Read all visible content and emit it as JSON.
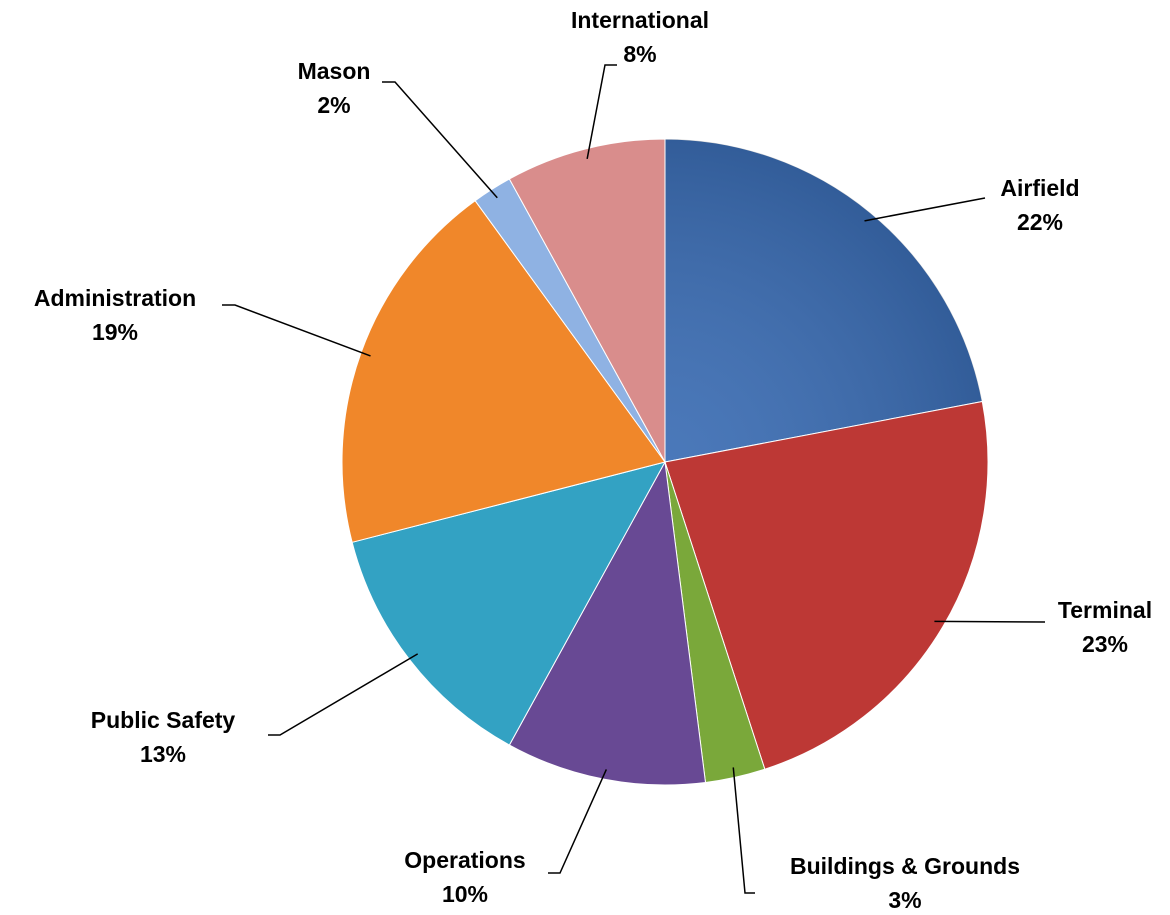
{
  "chart_data": {
    "type": "pie",
    "categories": [
      "Airfield",
      "Terminal",
      "Buildings & Grounds",
      "Operations",
      "Public Safety",
      "Administration",
      "Mason",
      "International"
    ],
    "values": [
      22,
      23,
      3,
      10,
      13,
      19,
      2,
      8
    ],
    "value_labels": [
      "22%",
      "23%",
      "3%",
      "10%",
      "13%",
      "19%",
      "2%",
      "8%"
    ],
    "colors": [
      "#3b6db4",
      "#bd3835",
      "#7aa83a",
      "#684994",
      "#33a2c3",
      "#f0872a",
      "#8fb2e3",
      "#d98d8c"
    ]
  }
}
